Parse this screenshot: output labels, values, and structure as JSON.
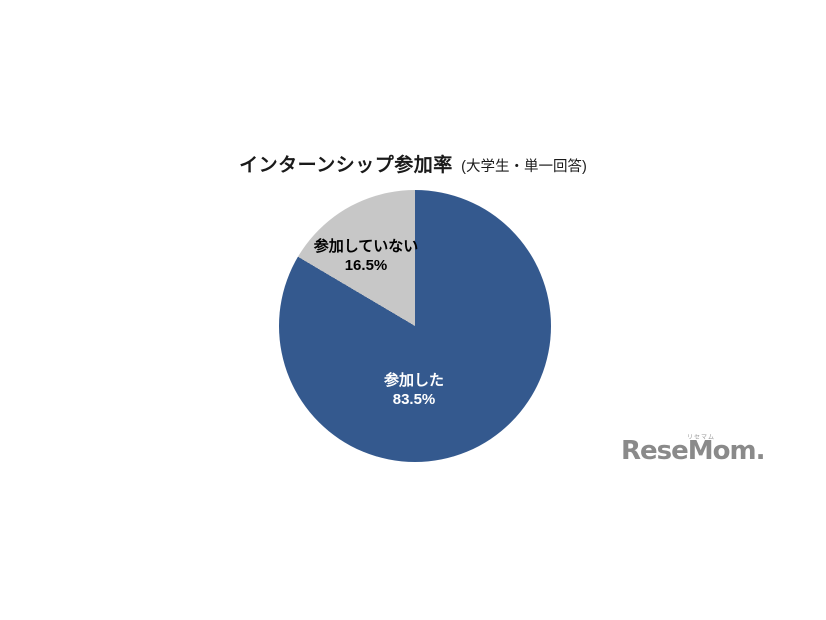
{
  "chart_data": {
    "type": "pie",
    "title": "インターンシップ参加率",
    "subtitle": "(大学生・単一回答)",
    "direction": "clockwise",
    "start_angle_deg": 0,
    "legend_position": "none",
    "slices": [
      {
        "label": "参加した",
        "value": 83.5,
        "display": "83.5%",
        "color": "#34598e",
        "text_color": "#ffffff"
      },
      {
        "label": "参加していない",
        "value": 16.5,
        "display": "16.5%",
        "color": "#c7c7c7",
        "text_color": "#000000"
      }
    ]
  },
  "logo": {
    "text": "ReseMom.",
    "ruby": "リセマム"
  }
}
